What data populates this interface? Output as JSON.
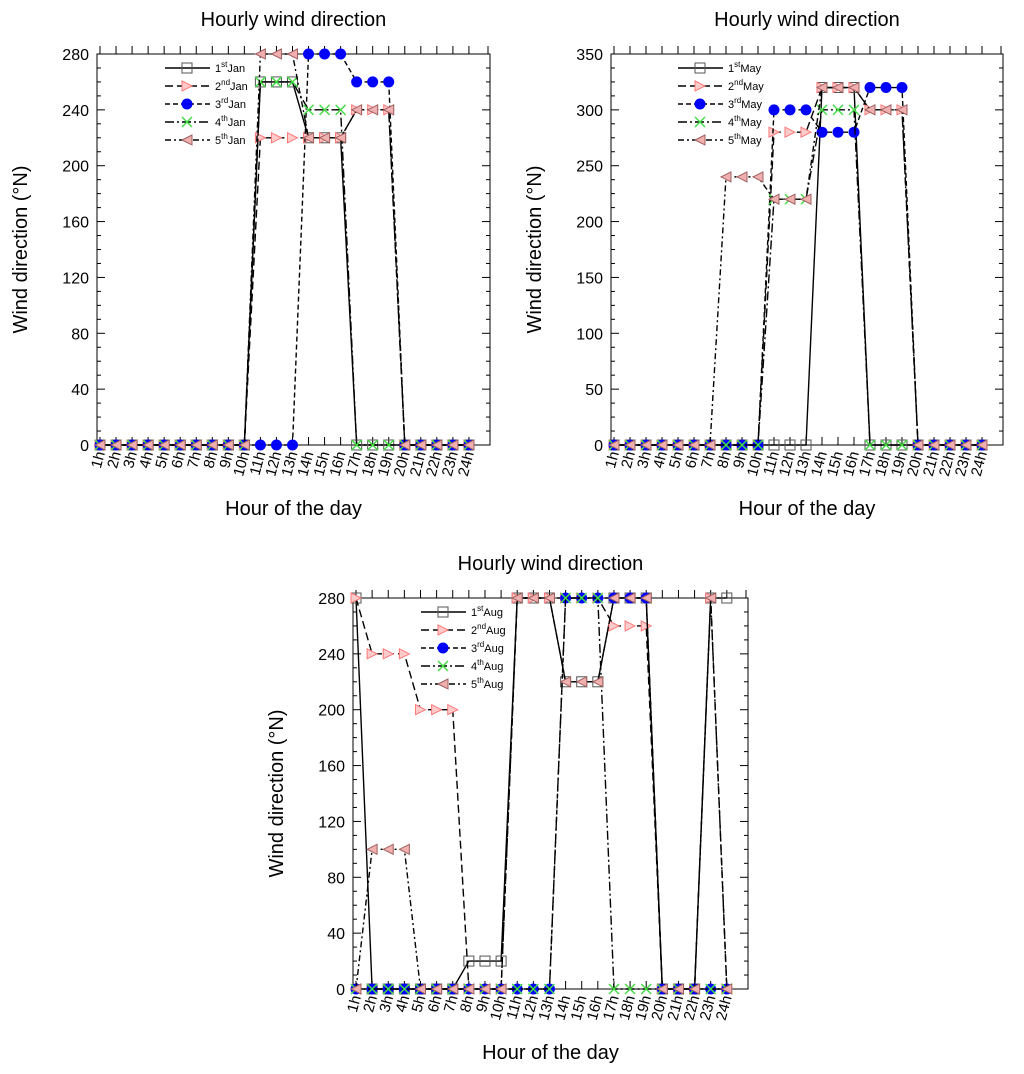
{
  "charts": [
    {
      "title": "Hourly wind direction",
      "xlabel": "Hour of the day",
      "ylabel": "Wind direction (°N)",
      "month": "Jan",
      "yticks": [
        0,
        40,
        80,
        120,
        160,
        200,
        240,
        280
      ]
    },
    {
      "title": "Hourly wind direction",
      "xlabel": "Hour of the day",
      "ylabel": "Wind direction (°N)",
      "month": "May",
      "yticks": [
        0,
        50,
        100,
        150,
        200,
        250,
        300,
        350
      ]
    },
    {
      "title": "Hourly wind direction",
      "xlabel": "Hour of the day",
      "ylabel": "Wind direction (°N)",
      "month": "Aug",
      "yticks": [
        0,
        40,
        80,
        120,
        160,
        200,
        240,
        280
      ]
    }
  ],
  "chart_data": [
    {
      "type": "line",
      "title": "Hourly wind direction",
      "xlabel": "Hour of the day",
      "ylabel": "Wind direction (°N)",
      "x": [
        "1h",
        "2h",
        "3h",
        "4h",
        "5h",
        "6h",
        "7h",
        "8h",
        "9h",
        "10h",
        "11h",
        "12h",
        "13h",
        "14h",
        "15h",
        "16h",
        "17h",
        "18h",
        "19h",
        "20h",
        "21h",
        "22h",
        "23h",
        "24h"
      ],
      "ylim": [
        0,
        280
      ],
      "grid": false,
      "legend": "top-left",
      "series": [
        {
          "day": "1",
          "sup": "st",
          "month": "Jan",
          "values": [
            0,
            0,
            0,
            0,
            0,
            0,
            0,
            0,
            0,
            0,
            260,
            260,
            260,
            220,
            220,
            220,
            0,
            0,
            0,
            0,
            0,
            0,
            0,
            0
          ]
        },
        {
          "day": "2",
          "sup": "nd",
          "month": "Jan",
          "values": [
            0,
            0,
            0,
            0,
            0,
            0,
            0,
            0,
            0,
            0,
            220,
            220,
            220,
            220,
            220,
            220,
            240,
            240,
            240,
            0,
            0,
            0,
            0,
            0
          ]
        },
        {
          "day": "3",
          "sup": "rd",
          "month": "Jan",
          "values": [
            0,
            0,
            0,
            0,
            0,
            0,
            0,
            0,
            0,
            0,
            0,
            0,
            0,
            280,
            280,
            280,
            260,
            260,
            260,
            0,
            0,
            0,
            0,
            0
          ]
        },
        {
          "day": "4",
          "sup": "th",
          "month": "Jan",
          "values": [
            0,
            0,
            0,
            0,
            0,
            0,
            0,
            0,
            0,
            0,
            260,
            260,
            260,
            240,
            240,
            240,
            0,
            0,
            0,
            0,
            0,
            0,
            0,
            0
          ]
        },
        {
          "day": "5",
          "sup": "th",
          "month": "Jan",
          "values": [
            0,
            0,
            0,
            0,
            0,
            0,
            0,
            0,
            0,
            0,
            280,
            280,
            280,
            220,
            220,
            220,
            240,
            240,
            240,
            0,
            0,
            0,
            0,
            0
          ]
        }
      ]
    },
    {
      "type": "line",
      "title": "Hourly wind direction",
      "xlabel": "Hour of the day",
      "ylabel": "Wind direction (°N)",
      "x": [
        "1h",
        "2h",
        "3h",
        "4h",
        "5h",
        "6h",
        "7h",
        "8h",
        "9h",
        "10h",
        "11h",
        "12h",
        "13h",
        "14h",
        "15h",
        "16h",
        "17h",
        "18h",
        "19h",
        "20h",
        "21h",
        "22h",
        "23h",
        "24h"
      ],
      "ylim": [
        0,
        350
      ],
      "grid": false,
      "legend": "top-left",
      "series": [
        {
          "day": "1",
          "sup": "st",
          "month": "May",
          "values": [
            0,
            0,
            0,
            0,
            0,
            0,
            0,
            0,
            0,
            0,
            0,
            0,
            0,
            320,
            320,
            320,
            0,
            0,
            0,
            0,
            0,
            0,
            0,
            0
          ]
        },
        {
          "day": "2",
          "sup": "nd",
          "month": "May",
          "values": [
            0,
            0,
            0,
            0,
            0,
            0,
            0,
            0,
            0,
            0,
            280,
            280,
            280,
            320,
            320,
            320,
            300,
            300,
            300,
            0,
            0,
            0,
            0,
            0
          ]
        },
        {
          "day": "3",
          "sup": "rd",
          "month": "May",
          "values": [
            0,
            0,
            0,
            0,
            0,
            0,
            0,
            0,
            0,
            0,
            300,
            300,
            300,
            280,
            280,
            280,
            320,
            320,
            320,
            0,
            0,
            0,
            0,
            0
          ]
        },
        {
          "day": "4",
          "sup": "th",
          "month": "May",
          "values": [
            0,
            0,
            0,
            0,
            0,
            0,
            0,
            0,
            0,
            0,
            220,
            220,
            220,
            300,
            300,
            300,
            0,
            0,
            0,
            0,
            0,
            0,
            0,
            0
          ]
        },
        {
          "day": "5",
          "sup": "th",
          "month": "May",
          "values": [
            0,
            0,
            0,
            0,
            0,
            0,
            0,
            240,
            240,
            240,
            220,
            220,
            220,
            320,
            320,
            320,
            300,
            300,
            300,
            0,
            0,
            0,
            0,
            0
          ]
        }
      ]
    },
    {
      "type": "line",
      "title": "Hourly wind direction",
      "xlabel": "Hour of the day",
      "ylabel": "Wind direction (°N)",
      "x": [
        "1h",
        "2h",
        "3h",
        "4h",
        "5h",
        "6h",
        "7h",
        "8h",
        "9h",
        "10h",
        "11h",
        "12h",
        "13h",
        "14h",
        "15h",
        "16h",
        "17h",
        "18h",
        "19h",
        "20h",
        "21h",
        "22h",
        "23h",
        "24h"
      ],
      "ylim": [
        0,
        280
      ],
      "grid": false,
      "legend": "top-left",
      "series": [
        {
          "day": "1",
          "sup": "st",
          "month": "Aug",
          "values": [
            280,
            0,
            0,
            0,
            0,
            0,
            0,
            20,
            20,
            20,
            280,
            280,
            280,
            220,
            220,
            220,
            280,
            280,
            280,
            0,
            0,
            0,
            280,
            280
          ]
        },
        {
          "day": "2",
          "sup": "nd",
          "month": "Aug",
          "values": [
            280,
            240,
            240,
            240,
            200,
            200,
            200,
            0,
            0,
            0,
            280,
            280,
            280,
            280,
            280,
            280,
            260,
            260,
            260,
            0,
            0,
            0,
            280,
            0
          ]
        },
        {
          "day": "3",
          "sup": "rd",
          "month": "Aug",
          "values": [
            0,
            0,
            0,
            0,
            0,
            0,
            0,
            0,
            0,
            0,
            0,
            0,
            0,
            280,
            280,
            280,
            280,
            280,
            280,
            0,
            0,
            0,
            0,
            0
          ]
        },
        {
          "day": "4",
          "sup": "th",
          "month": "Aug",
          "values": [
            0,
            0,
            0,
            0,
            0,
            0,
            0,
            0,
            0,
            0,
            0,
            0,
            0,
            280,
            280,
            280,
            0,
            0,
            0,
            0,
            0,
            0,
            0,
            0
          ]
        },
        {
          "day": "5",
          "sup": "th",
          "month": "Aug",
          "values": [
            0,
            100,
            100,
            100,
            0,
            0,
            0,
            0,
            0,
            0,
            280,
            280,
            280,
            220,
            220,
            220,
            280,
            280,
            280,
            0,
            0,
            0,
            280,
            0
          ]
        }
      ]
    }
  ],
  "styles": {
    "colors": {
      "s1": "#555555",
      "s2": "#ff7777",
      "s3": "#0000ff",
      "s4": "#44dd44",
      "s5": "#a06060"
    }
  }
}
